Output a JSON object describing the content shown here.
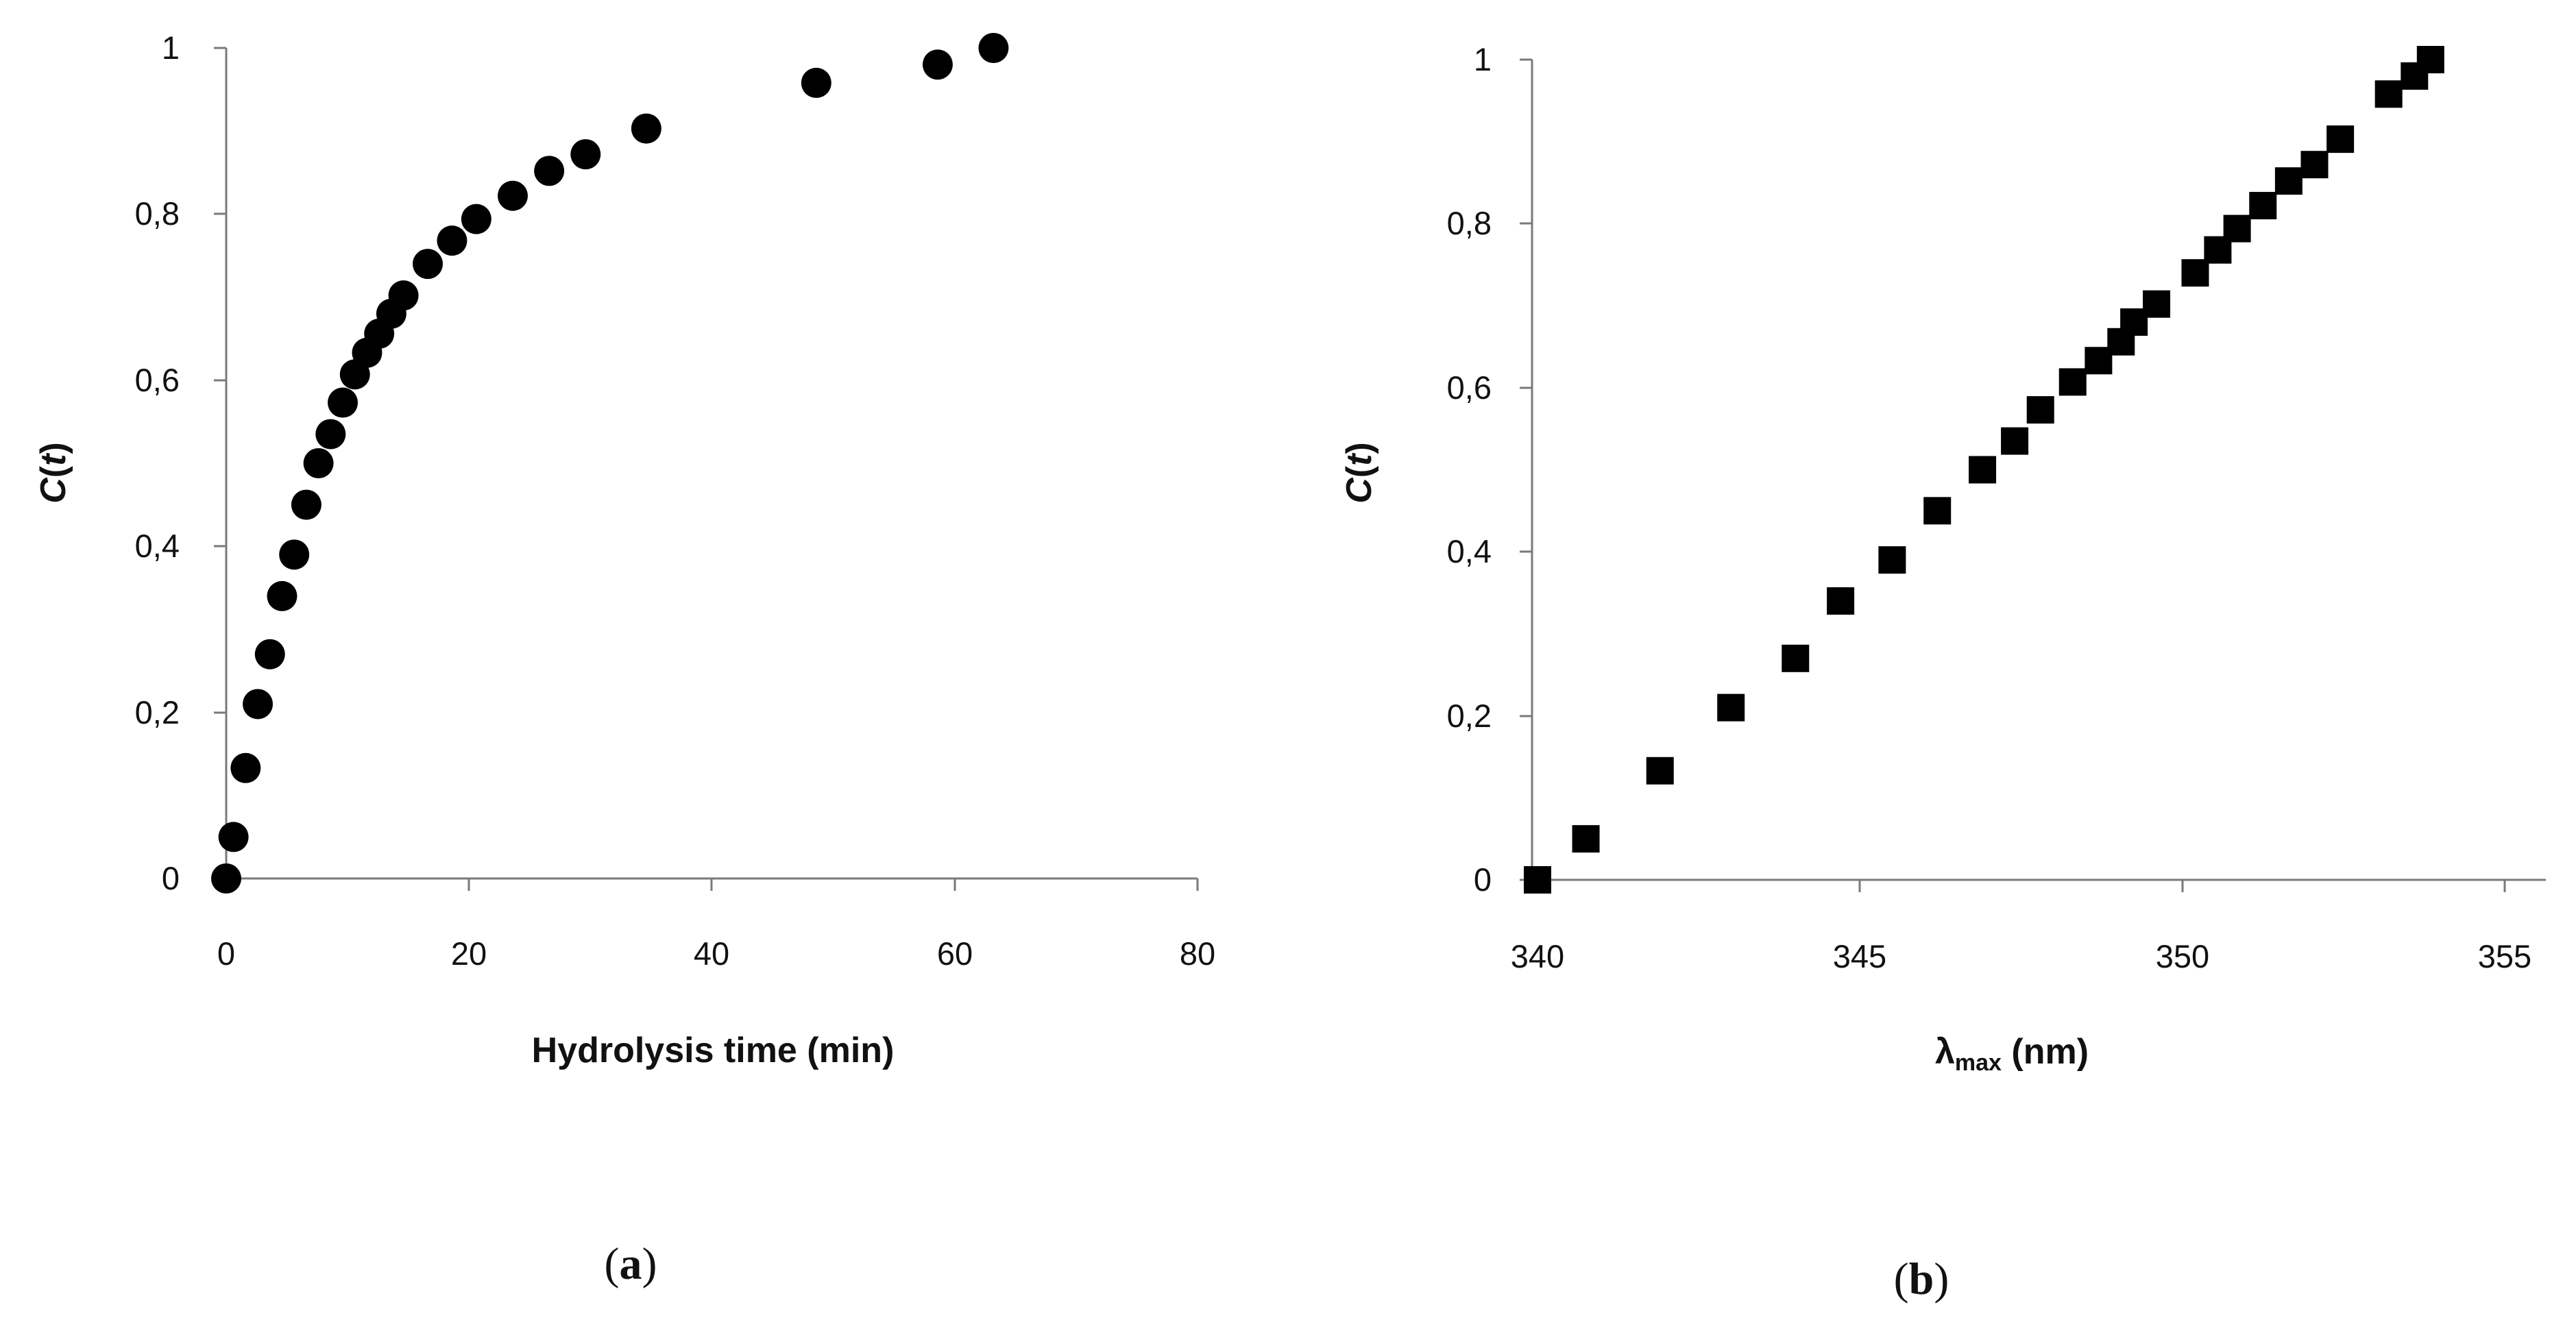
{
  "chart_data": [
    {
      "type": "scatter",
      "panel_label_open": "(",
      "panel_label": "a",
      "panel_label_close": ")",
      "title": "",
      "xlabel": "Hydrolysis time (min)",
      "ylabel": "C(t)",
      "ylabel_main": "C",
      "ylabel_arg": "t",
      "xlim": [
        0,
        80
      ],
      "ylim": [
        0,
        1
      ],
      "xticks": [
        0,
        20,
        40,
        60,
        80
      ],
      "xtick_labels": [
        "0",
        "20",
        "40",
        "60",
        "80"
      ],
      "yticks": [
        0,
        0.2,
        0.4,
        0.6,
        0.8,
        1
      ],
      "ytick_labels": [
        "0",
        "0,2",
        "0,4",
        "0,6",
        "0,8",
        "1"
      ],
      "marker": "circle",
      "marker_color": "#000000",
      "x": [
        0,
        0.6,
        1.6,
        2.6,
        3.6,
        4.6,
        5.6,
        6.6,
        7.6,
        8.6,
        9.6,
        10.6,
        11.6,
        12.6,
        13.6,
        14.6,
        16.6,
        18.6,
        20.6,
        23.6,
        26.6,
        29.6,
        34.6,
        48.6,
        58.6,
        63.2
      ],
      "y": [
        0.0,
        0.05,
        0.133,
        0.21,
        0.27,
        0.34,
        0.39,
        0.45,
        0.5,
        0.535,
        0.573,
        0.607,
        0.633,
        0.656,
        0.68,
        0.702,
        0.74,
        0.768,
        0.794,
        0.822,
        0.852,
        0.872,
        0.903,
        0.958,
        0.98,
        1.0
      ]
    },
    {
      "type": "scatter",
      "panel_label_open": "(",
      "panel_label": "b",
      "panel_label_close": ")",
      "title": "",
      "xlabel": "λmax (nm)",
      "xlabel_symbol": "λ",
      "xlabel_sub": "max",
      "xlabel_unit": " (nm)",
      "ylabel": "C(t)",
      "ylabel_main": "C",
      "ylabel_arg": "t",
      "xlim": [
        340,
        355
      ],
      "ylim": [
        0,
        1
      ],
      "xticks": [
        340,
        345,
        350,
        355
      ],
      "xtick_labels": [
        "340",
        "345",
        "350",
        "355"
      ],
      "yticks": [
        0,
        0.2,
        0.4,
        0.6,
        0.8,
        1
      ],
      "ytick_labels": [
        "0",
        "0,2",
        "0,4",
        "0,6",
        "0,8",
        "1"
      ],
      "marker": "square",
      "marker_color": "#000000",
      "x": [
        340.0,
        340.75,
        341.9,
        343.0,
        344.0,
        344.7,
        345.5,
        346.2,
        346.9,
        347.4,
        347.8,
        348.3,
        348.7,
        349.05,
        349.25,
        349.6,
        350.2,
        350.55,
        350.85,
        351.25,
        351.65,
        352.05,
        352.45,
        353.2,
        353.6,
        353.85
      ],
      "y": [
        0.0,
        0.05,
        0.133,
        0.21,
        0.27,
        0.34,
        0.39,
        0.45,
        0.5,
        0.535,
        0.573,
        0.607,
        0.633,
        0.656,
        0.68,
        0.702,
        0.74,
        0.768,
        0.794,
        0.822,
        0.852,
        0.872,
        0.903,
        0.958,
        0.98,
        1.0
      ]
    }
  ]
}
